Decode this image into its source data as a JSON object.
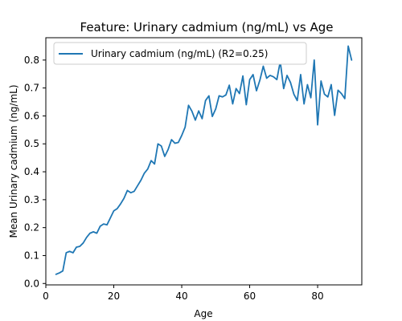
{
  "chart_data": {
    "type": "line",
    "title": "Feature: Urinary cadmium (ng/mL) vs Age",
    "xlabel": "Age",
    "ylabel": "Mean Urinary cadmium (ng/mL)",
    "xlim": [
      0,
      93
    ],
    "ylim": [
      -0.005,
      0.88
    ],
    "xticks": [
      0,
      20,
      40,
      60,
      80
    ],
    "yticks": [
      0.0,
      0.1,
      0.2,
      0.3,
      0.4,
      0.5,
      0.6,
      0.7,
      0.8
    ],
    "grid": false,
    "legend_position": "top-left",
    "series": [
      {
        "name": "Urinary cadmium (ng/mL) (R2=0.25)",
        "color": "#1f77b4",
        "x": [
          3,
          4,
          5,
          6,
          7,
          8,
          9,
          10,
          11,
          12,
          13,
          14,
          15,
          16,
          17,
          18,
          19,
          20,
          21,
          22,
          23,
          24,
          25,
          26,
          27,
          28,
          29,
          30,
          31,
          32,
          33,
          34,
          35,
          36,
          37,
          38,
          39,
          40,
          41,
          42,
          43,
          44,
          45,
          46,
          47,
          48,
          49,
          50,
          51,
          52,
          53,
          54,
          55,
          56,
          57,
          58,
          59,
          60,
          61,
          62,
          63,
          64,
          65,
          66,
          67,
          68,
          69,
          70,
          71,
          72,
          73,
          74,
          75,
          76,
          77,
          78,
          79,
          80,
          81,
          82,
          83,
          84,
          85,
          86,
          87,
          88,
          89,
          90
        ],
        "y": [
          0.033,
          0.038,
          0.045,
          0.11,
          0.115,
          0.11,
          0.13,
          0.133,
          0.145,
          0.165,
          0.18,
          0.185,
          0.18,
          0.205,
          0.213,
          0.21,
          0.235,
          0.26,
          0.268,
          0.285,
          0.305,
          0.333,
          0.325,
          0.33,
          0.35,
          0.37,
          0.395,
          0.41,
          0.44,
          0.428,
          0.5,
          0.492,
          0.455,
          0.48,
          0.515,
          0.502,
          0.505,
          0.53,
          0.56,
          0.638,
          0.617,
          0.585,
          0.618,
          0.59,
          0.655,
          0.672,
          0.598,
          0.625,
          0.672,
          0.668,
          0.675,
          0.71,
          0.643,
          0.698,
          0.68,
          0.743,
          0.64,
          0.73,
          0.748,
          0.69,
          0.728,
          0.778,
          0.735,
          0.745,
          0.74,
          0.73,
          0.795,
          0.698,
          0.745,
          0.72,
          0.678,
          0.655,
          0.748,
          0.643,
          0.712,
          0.665,
          0.8,
          0.568,
          0.725,
          0.678,
          0.668,
          0.712,
          0.602,
          0.692,
          0.68,
          0.662,
          0.85,
          0.8
        ]
      }
    ]
  }
}
